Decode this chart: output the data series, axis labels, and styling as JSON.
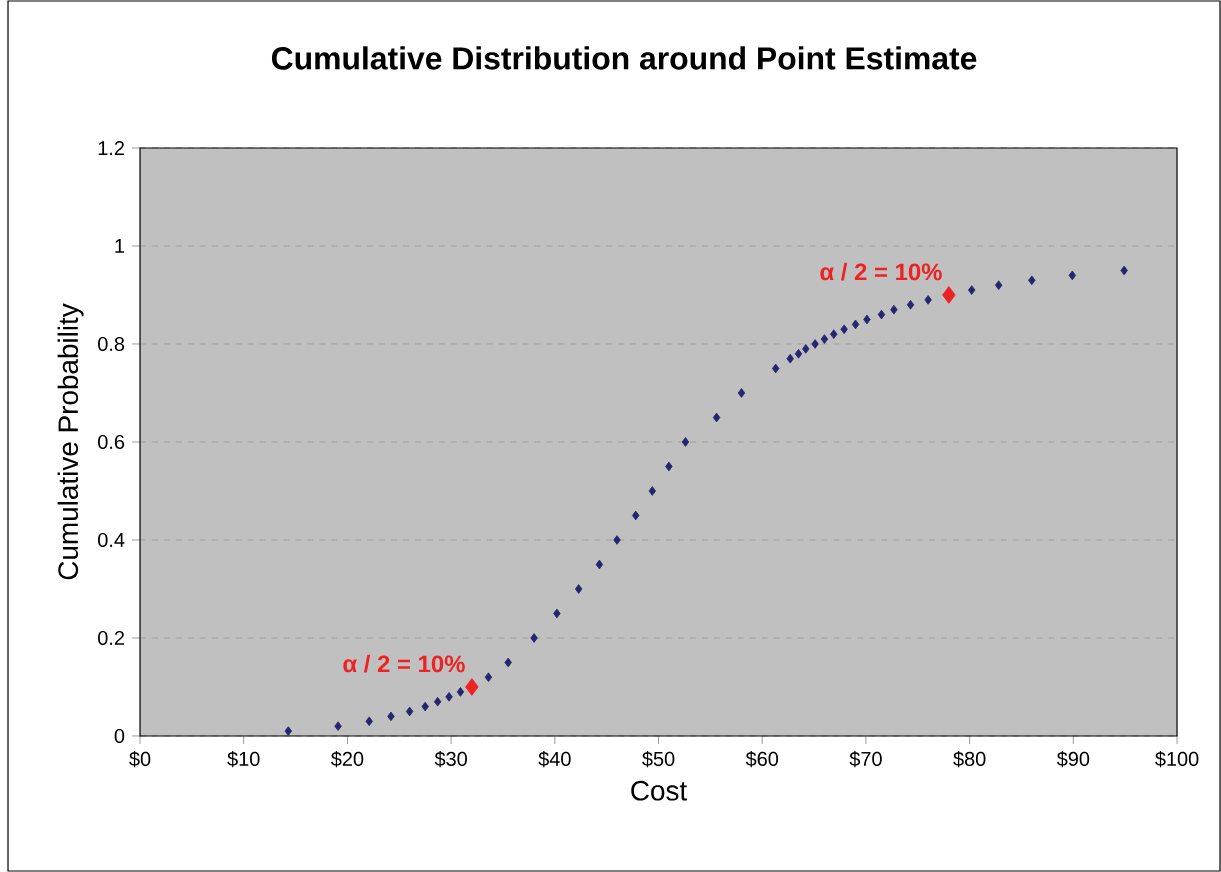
{
  "chart_data": {
    "type": "scatter",
    "title": "Cumulative Distribution around Point Estimate",
    "xlabel": "Cost",
    "ylabel": "Cumulative Probability",
    "x": [
      14.3,
      19.1,
      22.1,
      24.2,
      26.0,
      27.5,
      28.7,
      29.8,
      30.9,
      33.6,
      35.5,
      38.0,
      40.2,
      42.3,
      44.3,
      46.0,
      47.8,
      49.4,
      51.0,
      52.6,
      55.6,
      58.0,
      61.3,
      62.7,
      63.5,
      64.2,
      65.1,
      66.0,
      66.9,
      67.9,
      69.0,
      70.1,
      71.5,
      72.7,
      74.3,
      76.0,
      80.2,
      82.8,
      86.0,
      89.9,
      94.9
    ],
    "series": [
      {
        "color": "#252570",
        "marker": "diamond",
        "values": [
          0.01,
          0.02,
          0.03,
          0.04,
          0.05,
          0.06,
          0.07,
          0.08,
          0.09,
          0.12,
          0.15,
          0.2,
          0.25,
          0.3,
          0.35,
          0.4,
          0.45,
          0.5,
          0.55,
          0.6,
          0.65,
          0.7,
          0.75,
          0.77,
          0.78,
          0.79,
          0.8,
          0.81,
          0.82,
          0.83,
          0.84,
          0.85,
          0.86,
          0.87,
          0.88,
          0.89,
          0.91,
          0.92,
          0.93,
          0.94,
          0.95
        ]
      },
      {
        "color": "#ee2222",
        "marker": "diamond",
        "x": [
          32,
          78
        ],
        "values": [
          0.1,
          0.9
        ]
      }
    ],
    "xlim": [
      0,
      100
    ],
    "ylim": [
      0,
      1.2
    ],
    "xticks": [
      {
        "value": 0,
        "label": "$0"
      },
      {
        "value": 10,
        "label": "$10"
      },
      {
        "value": 20,
        "label": "$20"
      },
      {
        "value": 30,
        "label": "$30"
      },
      {
        "value": 40,
        "label": "$40"
      },
      {
        "value": 50,
        "label": "$50"
      },
      {
        "value": 60,
        "label": "$60"
      },
      {
        "value": 70,
        "label": "$70"
      },
      {
        "value": 80,
        "label": "$80"
      },
      {
        "value": 90,
        "label": "$90"
      },
      {
        "value": 100,
        "label": "$100"
      }
    ],
    "yticks": [
      0,
      0.2,
      0.4,
      0.6,
      0.8,
      1,
      1.2
    ],
    "grid": "y",
    "annotations": [
      {
        "text": "α / 2 = 10%",
        "x": 32,
        "y": 0.1
      },
      {
        "text": "α / 2 = 10%",
        "x": 78,
        "y": 0.9
      }
    ]
  }
}
